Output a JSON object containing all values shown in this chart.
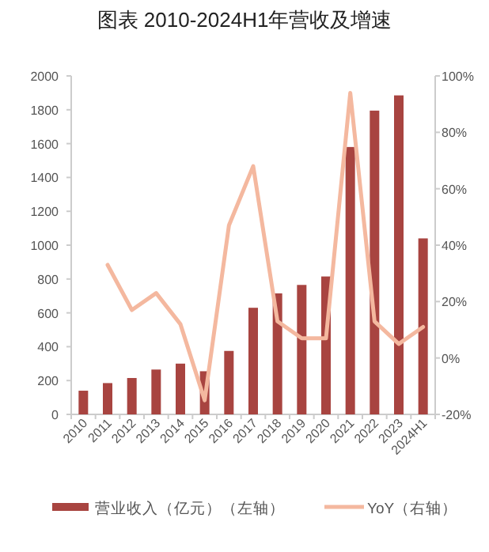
{
  "chart_data": {
    "type": "bar",
    "title": "图表 2010-2024H1年营收及增速",
    "categories": [
      "2010",
      "2011",
      "2012",
      "2013",
      "2014",
      "2015",
      "2016",
      "2017",
      "2018",
      "2019",
      "2020",
      "2021",
      "2022",
      "2023",
      "2024H1"
    ],
    "series": [
      {
        "name": "营业收入（亿元）（左轴）",
        "color": "#a84440",
        "values": [
          140,
          185,
          215,
          265,
          300,
          255,
          375,
          630,
          715,
          765,
          815,
          1580,
          1795,
          1885,
          1040
        ]
      },
      {
        "name": "YoY（右轴）",
        "type": "line",
        "axis": "y2",
        "color": "#f4b89f",
        "values": [
          null,
          33,
          17,
          23,
          12,
          -15,
          47,
          68,
          13,
          7,
          7,
          94,
          13,
          5,
          11
        ]
      }
    ],
    "ylim": [
      0,
      2000
    ],
    "yticks": [
      0,
      200,
      400,
      600,
      800,
      1000,
      1200,
      1400,
      1600,
      1800,
      2000
    ],
    "y2lim": [
      -20,
      100
    ],
    "y2ticks": [
      {
        "value": -20,
        "label": "-20%"
      },
      {
        "value": 0,
        "label": "0%"
      },
      {
        "value": 20,
        "label": "20%"
      },
      {
        "value": 40,
        "label": "40%"
      },
      {
        "value": 60,
        "label": "60%"
      },
      {
        "value": 80,
        "label": "80%"
      },
      {
        "value": 100,
        "label": "100%"
      }
    ],
    "legend": "bottom",
    "grid": false
  }
}
